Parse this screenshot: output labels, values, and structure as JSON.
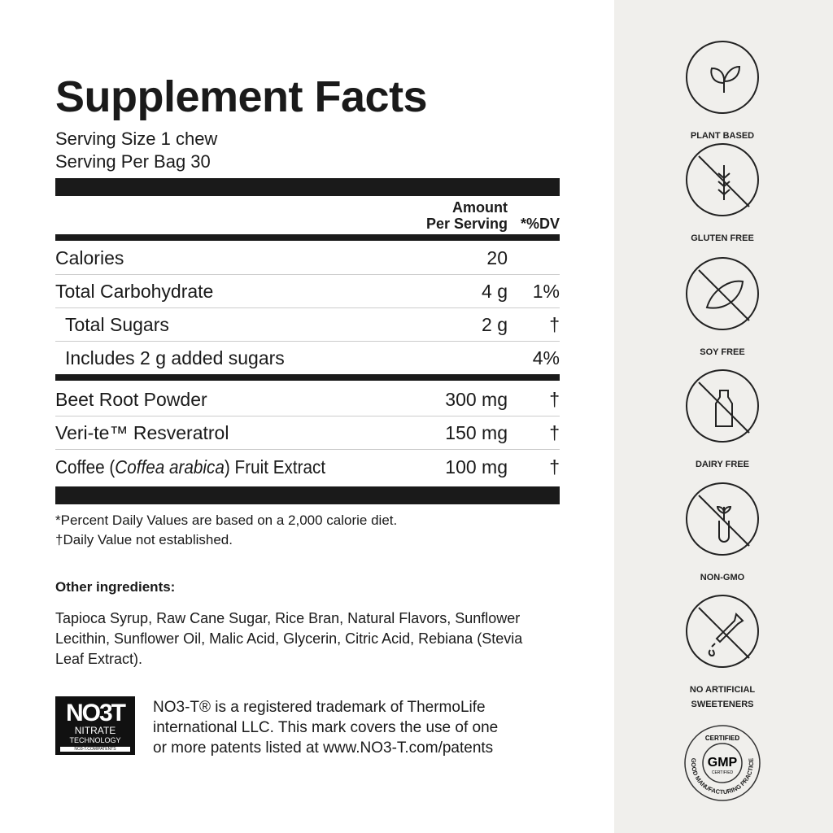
{
  "title": "Supplement Facts",
  "serving_size": "Serving Size 1 chew",
  "serving_per_bag": "Serving Per Bag 30",
  "header": {
    "amount_line1": "Amount",
    "amount_line2": "Per Serving",
    "dv": "*%DV"
  },
  "rows": [
    {
      "name": "Calories",
      "amount": "20",
      "dv": ""
    },
    {
      "name": "Total Carbohydrate",
      "amount": "4 g",
      "dv": "1%"
    },
    {
      "name": "Total Sugars",
      "amount": "2 g",
      "dv": "†"
    },
    {
      "name": "Includes 2 g added sugars",
      "amount": "",
      "dv": "4%"
    },
    {
      "name": "Beet Root Powder",
      "amount": "300 mg",
      "dv": "†"
    },
    {
      "name": "Veri-te™ Resveratrol",
      "amount": "150 mg",
      "dv": "†"
    },
    {
      "name_prefix": "Coffee (",
      "name_italic": "Coffea arabica",
      "name_suffix": ") Fruit Extract",
      "amount": "100 mg",
      "dv": "†"
    }
  ],
  "footnotes": [
    "*Percent Daily Values are based on a 2,000 calorie diet.",
    "†Daily Value not established."
  ],
  "other_ingredients_label": "Other ingredients:",
  "other_ingredients": "Tapioca Syrup, Raw Cane Sugar, Rice Bran, Natural Flavors, Sunflower Lecithin, Sunflower Oil, Malic Acid, Glycerin, Citric Acid, Rebiana (Stevia Leaf Extract).",
  "logo": {
    "big": "NO3T",
    "line1": "NITRATE",
    "line2": "TECHNOLOGY",
    "url": "NO3-T.COM/PATENTS"
  },
  "trademark": [
    "NO3-T® is a registered trademark of ThermoLife",
    "international LLC. This mark covers the use of one",
    "or more patents listed at www.NO3-T.com/patents"
  ],
  "badges": [
    {
      "label": "PLANT BASED",
      "icon": "leaf-icon"
    },
    {
      "label": "GLUTEN FREE",
      "icon": "wheat-icon"
    },
    {
      "label": "SOY FREE",
      "icon": "soybean-icon"
    },
    {
      "label": "DAIRY FREE",
      "icon": "milk-bottle-icon"
    },
    {
      "label": "NON-GMO",
      "icon": "test-tube-plant-icon"
    },
    {
      "label": "NO ARTIFICIAL",
      "label2": "SWEETENERS",
      "icon": "dropper-icon"
    }
  ],
  "gmp": {
    "top": "CERTIFIED",
    "center": "GMP",
    "sub": "CERTIFIED",
    "ring": "GOOD MANUFACTURING PRACTICE"
  }
}
